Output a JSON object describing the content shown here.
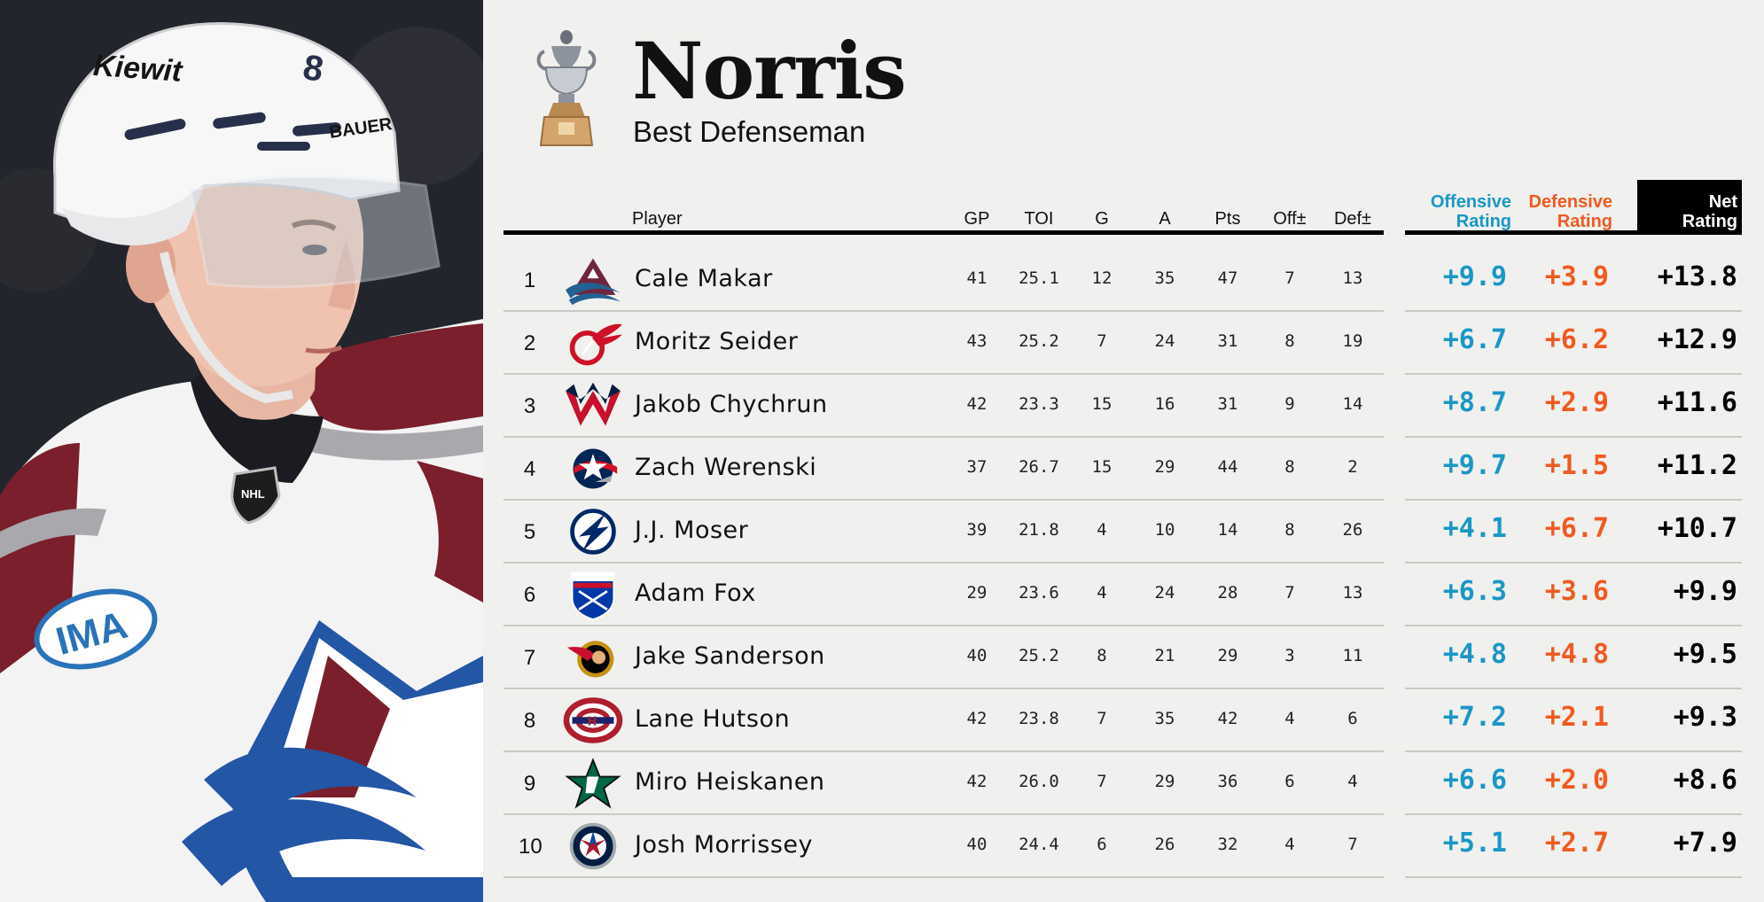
{
  "award": {
    "title": "Norris",
    "subtitle": "Best Defenseman"
  },
  "photo": {
    "helmet_text": "Kiewit",
    "helmet_brand": "BAUER",
    "helmet_number": "8",
    "shoulder_patch": "IMA",
    "crest": "NHL"
  },
  "columns": {
    "player": "Player",
    "gp": "GP",
    "toi": "TOI",
    "g": "G",
    "a": "A",
    "pts": "Pts",
    "off": "Off±",
    "def": "Def±",
    "off_rating": [
      "Offensive",
      "Rating"
    ],
    "def_rating": [
      "Defensive",
      "Rating"
    ],
    "net_rating": [
      "Net",
      "Rating"
    ]
  },
  "colors": {
    "offensive": "#1a97c6",
    "defensive": "#f05a22",
    "net": "#000000"
  },
  "rows": [
    {
      "rank": "1",
      "player": "Cale Makar",
      "team_logo": "colorado-avalanche-logo",
      "gp": "41",
      "toi": "25.1",
      "g": "12",
      "a": "35",
      "pts": "47",
      "off": "7",
      "def": "13",
      "off_rating": "+9.9",
      "def_rating": "+3.9",
      "net_rating": "+13.8"
    },
    {
      "rank": "2",
      "player": "Moritz Seider",
      "team_logo": "detroit-red-wings-logo",
      "gp": "43",
      "toi": "25.2",
      "g": "7",
      "a": "24",
      "pts": "31",
      "off": "8",
      "def": "19",
      "off_rating": "+6.7",
      "def_rating": "+6.2",
      "net_rating": "+12.9"
    },
    {
      "rank": "3",
      "player": "Jakob Chychrun",
      "team_logo": "washington-capitals-logo",
      "gp": "42",
      "toi": "23.3",
      "g": "15",
      "a": "16",
      "pts": "31",
      "off": "9",
      "def": "14",
      "off_rating": "+8.7",
      "def_rating": "+2.9",
      "net_rating": "+11.6"
    },
    {
      "rank": "4",
      "player": "Zach Werenski",
      "team_logo": "columbus-blue-jackets-logo",
      "gp": "37",
      "toi": "26.7",
      "g": "15",
      "a": "29",
      "pts": "44",
      "off": "8",
      "def": "2",
      "off_rating": "+9.7",
      "def_rating": "+1.5",
      "net_rating": "+11.2"
    },
    {
      "rank": "5",
      "player": "J.J. Moser",
      "team_logo": "tampa-bay-lightning-logo",
      "gp": "39",
      "toi": "21.8",
      "g": "4",
      "a": "10",
      "pts": "14",
      "off": "8",
      "def": "26",
      "off_rating": "+4.1",
      "def_rating": "+6.7",
      "net_rating": "+10.7"
    },
    {
      "rank": "6",
      "player": "Adam Fox",
      "team_logo": "new-york-rangers-logo",
      "gp": "29",
      "toi": "23.6",
      "g": "4",
      "a": "24",
      "pts": "28",
      "off": "7",
      "def": "13",
      "off_rating": "+6.3",
      "def_rating": "+3.6",
      "net_rating": "+9.9"
    },
    {
      "rank": "7",
      "player": "Jake Sanderson",
      "team_logo": "ottawa-senators-logo",
      "gp": "40",
      "toi": "25.2",
      "g": "8",
      "a": "21",
      "pts": "29",
      "off": "3",
      "def": "11",
      "off_rating": "+4.8",
      "def_rating": "+4.8",
      "net_rating": "+9.5"
    },
    {
      "rank": "8",
      "player": "Lane Hutson",
      "team_logo": "montreal-canadiens-logo",
      "gp": "42",
      "toi": "23.8",
      "g": "7",
      "a": "35",
      "pts": "42",
      "off": "4",
      "def": "6",
      "off_rating": "+7.2",
      "def_rating": "+2.1",
      "net_rating": "+9.3"
    },
    {
      "rank": "9",
      "player": "Miro Heiskanen",
      "team_logo": "dallas-stars-logo",
      "gp": "42",
      "toi": "26.0",
      "g": "7",
      "a": "29",
      "pts": "36",
      "off": "6",
      "def": "4",
      "off_rating": "+6.6",
      "def_rating": "+2.0",
      "net_rating": "+8.6"
    },
    {
      "rank": "10",
      "player": "Josh Morrissey",
      "team_logo": "winnipeg-jets-logo",
      "gp": "40",
      "toi": "24.4",
      "g": "6",
      "a": "26",
      "pts": "32",
      "off": "4",
      "def": "7",
      "off_rating": "+5.1",
      "def_rating": "+2.7",
      "net_rating": "+7.9"
    }
  ]
}
